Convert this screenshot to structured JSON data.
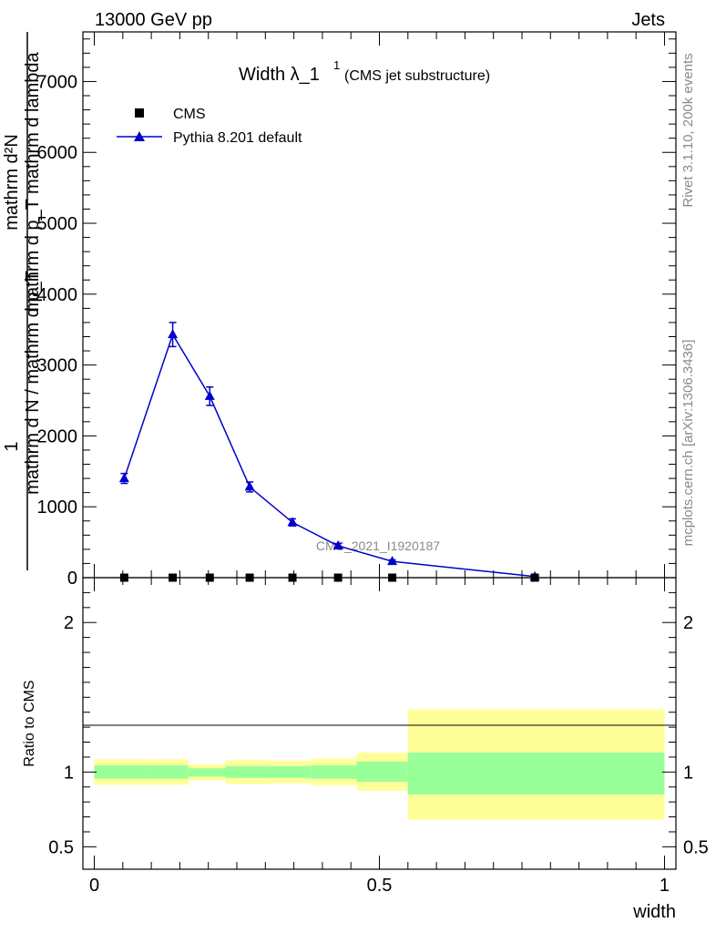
{
  "header": {
    "energy_label": "13000 GeV pp",
    "process_label": "Jets",
    "title_main": "Width λ_1",
    "title_sup": "1",
    "title_paren": "(CMS jet substructure)",
    "side_rivet": "Rivet 3.1.10,  200k events",
    "side_mcplots": "mcplots.cern.ch [arXiv:1306.3436]",
    "watermark": "CMS_2021_I1920187"
  },
  "legend": {
    "cms_label": "CMS",
    "mc_label": "Pythia 8.201 default"
  },
  "colors": {
    "mc": "#0000cc",
    "data": "#000000",
    "band_inner": "#99ff99",
    "band_outer": "#ffff99"
  },
  "chart_data": [
    {
      "type": "line",
      "title": "Width λ_1^1 (CMS jet substructure)",
      "xlabel": "",
      "ylabel": "1 / mathrm d N / mathrm d p_T  mathrm d^2N / mathrm d p_T mathrm d lambda",
      "xlim": [
        -0.02,
        1.02
      ],
      "ylim": [
        0,
        7700
      ],
      "yticks": [
        0,
        1000,
        2000,
        3000,
        4000,
        5000,
        6000,
        7000
      ],
      "ytick_labels": [
        "0",
        "1000",
        "2000",
        "3000",
        "4000",
        "5000",
        "6000",
        "7000"
      ],
      "legend_position": "top-left",
      "series": [
        {
          "name": "CMS",
          "x": [
            0.0525,
            0.1375,
            0.2025,
            0.2725,
            0.3475,
            0.4275,
            0.5225,
            0.7725
          ],
          "y": [
            0,
            0,
            0,
            0,
            0,
            0,
            0,
            0
          ]
        },
        {
          "name": "Pythia 8.201 default",
          "x": [
            0.0525,
            0.1375,
            0.2025,
            0.2725,
            0.3475,
            0.4275,
            0.5225,
            0.7725
          ],
          "y": [
            1400,
            3430,
            2560,
            1280,
            780,
            450,
            230,
            15
          ],
          "yerr": [
            70,
            170,
            130,
            70,
            50,
            30,
            20,
            5
          ]
        }
      ]
    },
    {
      "type": "area",
      "title": "",
      "xlabel": "width",
      "ylabel": "Ratio to CMS",
      "xlim": [
        -0.02,
        1.02
      ],
      "ylim": [
        0.35,
        2.3
      ],
      "xticks": [
        0,
        0.5,
        1
      ],
      "xtick_labels": [
        "0",
        "0.5",
        "1"
      ],
      "yticks": [
        0.5,
        1,
        2
      ],
      "ytick_labels": [
        "0.5",
        "1",
        "2"
      ],
      "bins": [
        [
          0.0,
          0.1
        ],
        [
          0.1,
          0.165
        ],
        [
          0.165,
          0.23
        ],
        [
          0.23,
          0.305
        ],
        [
          0.305,
          0.38
        ],
        [
          0.38,
          0.46
        ],
        [
          0.46,
          0.55
        ],
        [
          0.55,
          1.0
        ]
      ],
      "band_inner": [
        [
          0.955,
          1.045
        ],
        [
          0.955,
          1.045
        ],
        [
          0.97,
          1.025
        ],
        [
          0.96,
          1.04
        ],
        [
          0.96,
          1.04
        ],
        [
          0.955,
          1.045
        ],
        [
          0.935,
          1.07
        ],
        [
          0.85,
          1.13
        ]
      ],
      "band_outer": [
        [
          0.915,
          1.085
        ],
        [
          0.915,
          1.085
        ],
        [
          0.945,
          1.05
        ],
        [
          0.92,
          1.08
        ],
        [
          0.925,
          1.075
        ],
        [
          0.91,
          1.09
        ],
        [
          0.875,
          1.13
        ],
        [
          0.68,
          1.42
        ]
      ],
      "reference": 1
    }
  ]
}
